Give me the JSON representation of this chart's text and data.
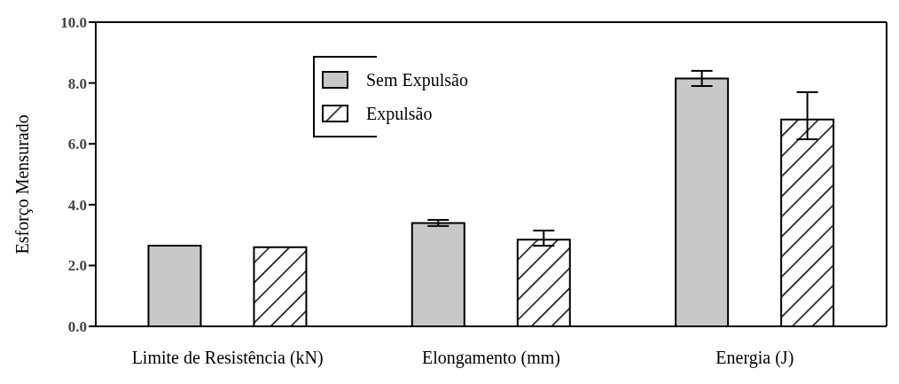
{
  "chart_data": {
    "type": "bar",
    "ylabel": "Esforço Mensurado",
    "categories": [
      "Limite de Resistência (kN)",
      "Elongamento  (mm)",
      "Energia (J)"
    ],
    "series": [
      {
        "name": "Sem Expulsão",
        "color": "#c8c8c8",
        "values": [
          2.65,
          3.4,
          8.15
        ],
        "errors": [
          null,
          [
            3.3,
            3.5
          ],
          [
            7.9,
            8.4
          ]
        ]
      },
      {
        "name": "Expulsão",
        "color": "#000000",
        "values": [
          2.6,
          2.85,
          6.8
        ],
        "errors": [
          null,
          [
            2.65,
            3.15
          ],
          [
            6.15,
            7.7
          ]
        ]
      }
    ],
    "ylim": [
      0,
      10
    ],
    "yticks": [
      {
        "value": 0,
        "label": "0.0"
      },
      {
        "value": 2,
        "label": "2.0"
      },
      {
        "value": 4,
        "label": "4.0"
      },
      {
        "value": 6,
        "label": "6.0"
      },
      {
        "value": 8,
        "label": "8.0"
      },
      {
        "value": 10,
        "label": "10.0"
      }
    ],
    "legend": "top",
    "grid": false
  }
}
